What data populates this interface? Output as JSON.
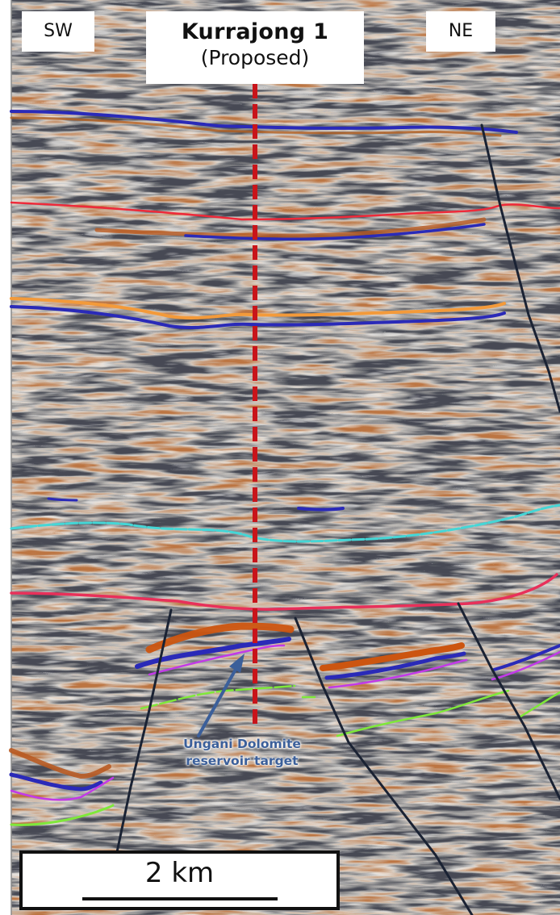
{
  "labels": {
    "left_direction": "SW",
    "right_direction": "NE",
    "well_name": "Kurrajong 1",
    "well_status": "(Proposed)",
    "target_line1": "Ungani Dolomite",
    "target_line2": "reservoir target",
    "scale": "2 km"
  },
  "colors": {
    "well_path": "#c8141a",
    "horizon_blue": "#2a2ab8",
    "horizon_red": "#ee2a3a",
    "horizon_orange": "#f39a3a",
    "horizon_cyan": "#45d6d6",
    "horizon_pink": "#e8305a",
    "horizon_purple": "#b02ad8",
    "horizon_green": "#7fe83a",
    "fault": "#1a2233",
    "arrow": "#3b5f9a"
  }
}
